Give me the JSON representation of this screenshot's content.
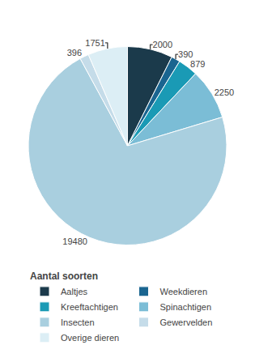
{
  "chart_data": {
    "type": "pie",
    "title": "Aantal soorten",
    "categories": [
      "Aaltjes",
      "Weekdieren",
      "Kreeftachtigen",
      "Spinachtigen",
      "Insecten",
      "Gewervelden",
      "Overige dieren"
    ],
    "values": [
      2000,
      390,
      879,
      2250,
      19480,
      396,
      1751
    ],
    "colors": [
      "#1b3a4b",
      "#1a6590",
      "#1a9ab5",
      "#7bbdd6",
      "#a9cfdf",
      "#c5dce9",
      "#dceef5"
    ],
    "data_labels": true,
    "legend": "bottom"
  }
}
